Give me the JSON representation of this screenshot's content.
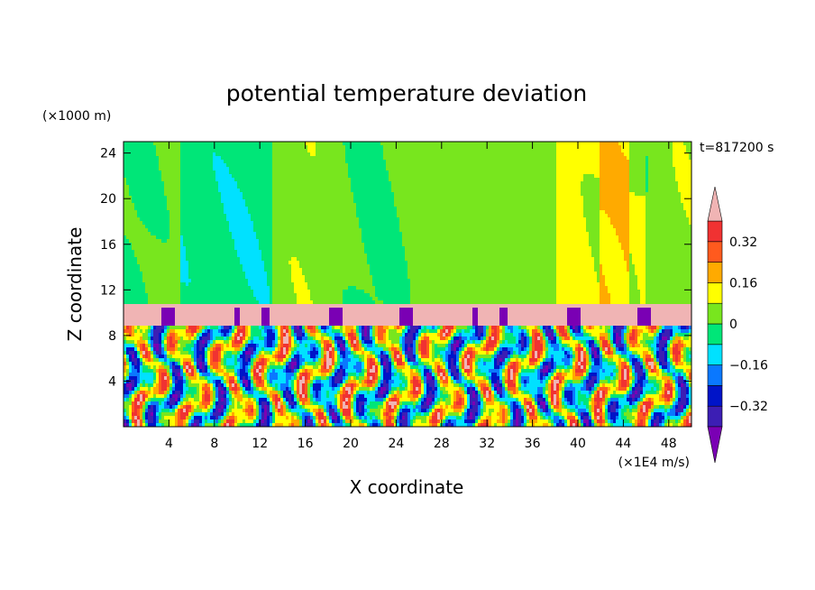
{
  "chart_data": {
    "type": "heatmap",
    "title": "potential temperature deviation",
    "xlabel": "X coordinate",
    "ylabel": "Z coordinate",
    "x_unit": "(×1E4 m/s)",
    "y_unit": "(×1000 m)",
    "time_label": "t=817200 s",
    "xlim": [
      0,
      50
    ],
    "ylim": [
      0,
      25
    ],
    "x_ticks": [
      4,
      8,
      12,
      16,
      20,
      24,
      28,
      32,
      36,
      40,
      44,
      48
    ],
    "y_ticks": [
      4,
      8,
      12,
      16,
      20,
      24
    ],
    "colorbar": {
      "levels": [
        -0.4,
        -0.32,
        -0.24,
        -0.16,
        -0.08,
        0,
        0.08,
        0.16,
        0.24,
        0.32,
        0.4
      ],
      "tick_labels": [
        "0.32",
        "0.16",
        "0",
        "−0.16",
        "−0.32"
      ],
      "tick_values": [
        0.32,
        0.16,
        0,
        -0.16,
        -0.32
      ],
      "colors_low_to_high": [
        "#7a00b4",
        "#3c1eb4",
        "#0014c8",
        "#0a78ff",
        "#00e1ff",
        "#00e678",
        "#78e61e",
        "#ffff00",
        "#ffaa00",
        "#ff5a1e",
        "#f03232",
        "#f0b4b4"
      ],
      "extend": "both"
    },
    "regions": {
      "upper_layer": {
        "z_range": [
          10.8,
          25
        ],
        "dominant_value": 0.04
      },
      "inversion_band": {
        "z_range": [
          8.9,
          10.8
        ],
        "dominant_value": 0.44
      },
      "turbulent_layer": {
        "z_range": [
          0,
          8.9
        ],
        "value_range": [
          -0.44,
          0.44
        ]
      }
    }
  }
}
